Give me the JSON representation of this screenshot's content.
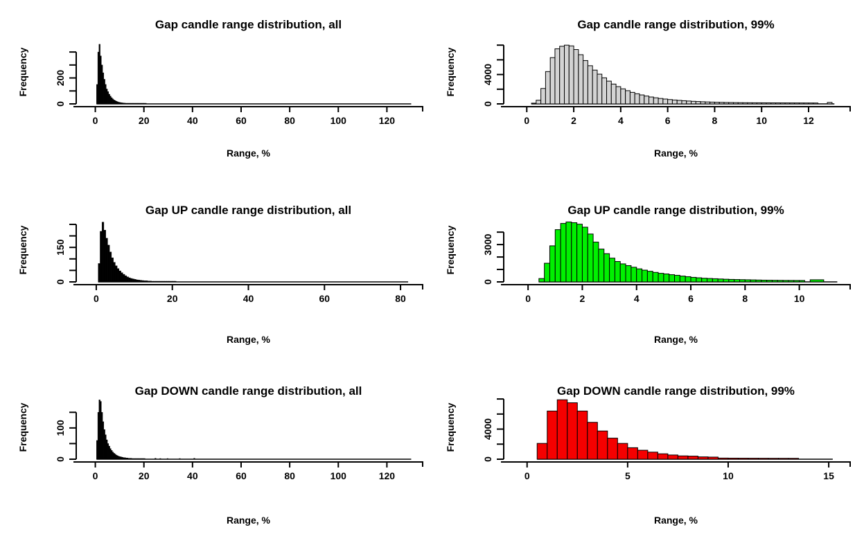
{
  "figure": {
    "background": "#ffffff",
    "grid": "off",
    "legend": "none"
  },
  "chart_data": [
    {
      "type": "histogram",
      "title": "Gap candle range distribution, all",
      "xlabel": "Range, %",
      "ylabel": "Frequency",
      "bar_color": "#000000",
      "bar_border": "#000000",
      "x_ticks": [
        0,
        20,
        40,
        60,
        80,
        100,
        120
      ],
      "xlim": [
        -9,
        135
      ],
      "y_ticks": [
        0,
        100,
        200,
        300,
        400
      ],
      "y_tick_labels": [
        "0",
        "",
        "200",
        "",
        ""
      ],
      "ylim": [
        0,
        470
      ],
      "bins": {
        "start": 0.5,
        "width": 0.5,
        "counts": [
          150,
          400,
          460,
          370,
          300,
          240,
          190,
          150,
          115,
          95,
          75,
          60,
          48,
          38,
          30,
          25,
          20,
          16,
          13,
          11,
          9,
          8,
          7,
          6,
          5,
          5,
          4,
          4,
          3,
          3,
          3,
          2,
          2,
          2,
          2,
          2,
          1,
          1,
          2,
          1
        ]
      },
      "extra_bars": [
        {
          "x": 20.6,
          "width": 0.4,
          "count": 5
        }
      ],
      "zero_line_end": 130
    },
    {
      "type": "histogram",
      "title": "Gap candle range distribution, 99%",
      "xlabel": "Range, %",
      "ylabel": "Frequency",
      "bar_color": "#d3d3d3",
      "bar_border": "#000000",
      "x_ticks": [
        0,
        2,
        4,
        6,
        8,
        10,
        12
      ],
      "xlim": [
        -1.1,
        13.8
      ],
      "y_ticks": [
        0,
        2000,
        4000,
        6000,
        8000
      ],
      "y_tick_labels": [
        "0",
        "",
        "4000",
        "",
        ""
      ],
      "ylim": [
        0,
        8300
      ],
      "bins": {
        "start": 0.2,
        "width": 0.2,
        "counts": [
          100,
          500,
          2100,
          4400,
          6300,
          7500,
          7850,
          8000,
          7900,
          7400,
          6700,
          5900,
          5200,
          4600,
          4050,
          3550,
          3100,
          2700,
          2350,
          2050,
          1800,
          1570,
          1380,
          1220,
          1070,
          940,
          830,
          740,
          660,
          590,
          530,
          480,
          430,
          390,
          350,
          320,
          290,
          265,
          245,
          225,
          210,
          195,
          185,
          175,
          165,
          160,
          155,
          150,
          148,
          145,
          143,
          140,
          138,
          136,
          134,
          132,
          130,
          128,
          126,
          124,
          122
        ]
      },
      "extra_bars": [
        {
          "x": 12.8,
          "width": 0.2,
          "count": 200
        }
      ],
      "zero_line_end": 13.1
    },
    {
      "type": "histogram",
      "title": "Gap UP candle range distribution, all",
      "xlabel": "Range, %",
      "ylabel": "Frequency",
      "bar_color": "#000000",
      "bar_border": "#000000",
      "x_ticks": [
        0,
        20,
        40,
        60,
        80
      ],
      "xlim": [
        -6,
        86
      ],
      "y_ticks": [
        0,
        50,
        100,
        150,
        200,
        250
      ],
      "y_tick_labels": [
        "0",
        "",
        "",
        "150",
        "",
        ""
      ],
      "ylim": [
        0,
        265
      ],
      "bins": {
        "start": 0.5,
        "width": 0.5,
        "counts": [
          80,
          220,
          260,
          225,
          190,
          160,
          130,
          105,
          85,
          70,
          58,
          48,
          40,
          33,
          27,
          22,
          18,
          15,
          13,
          11,
          9,
          8,
          7,
          6,
          5,
          5,
          4,
          4,
          3,
          3,
          3,
          3,
          2,
          2,
          2,
          2,
          2,
          2,
          1,
          2,
          1
        ]
      },
      "extra_bars": [],
      "zero_line_end": 82
    },
    {
      "type": "histogram",
      "title": "Gap UP candle range distribution, 99%",
      "xlabel": "Range, %",
      "ylabel": "Frequency",
      "bar_color": "#00f000",
      "bar_border": "#000000",
      "x_ticks": [
        0,
        2,
        4,
        6,
        8,
        10
      ],
      "xlim": [
        -1,
        11.9
      ],
      "y_ticks": [
        0,
        1000,
        2000,
        3000,
        4000
      ],
      "y_tick_labels": [
        "0",
        "",
        "",
        "3000",
        ""
      ],
      "ylim": [
        0,
        4900
      ],
      "bins": {
        "start": 0.4,
        "width": 0.2,
        "counts": [
          270,
          1500,
          2900,
          4200,
          4700,
          4820,
          4760,
          4640,
          4400,
          3850,
          3200,
          2640,
          2270,
          1910,
          1640,
          1450,
          1310,
          1180,
          1050,
          945,
          855,
          765,
          690,
          640,
          580,
          530,
          470,
          420,
          365,
          330,
          295,
          275,
          255,
          235,
          215,
          200,
          190,
          180,
          170,
          160,
          150,
          140,
          135,
          130,
          125,
          120,
          118,
          116,
          114
        ]
      },
      "extra_bars": [
        {
          "x": 10.4,
          "width": 0.5,
          "count": 170
        }
      ],
      "zero_line_end": 11.4
    },
    {
      "type": "histogram",
      "title": "Gap DOWN candle range distribution, all",
      "xlabel": "Range, %",
      "ylabel": "Frequency",
      "bar_color": "#000000",
      "bar_border": "#000000",
      "x_ticks": [
        0,
        20,
        40,
        60,
        80,
        100,
        120
      ],
      "xlim": [
        -9,
        135
      ],
      "y_ticks": [
        0,
        50,
        100,
        150
      ],
      "y_tick_labels": [
        "0",
        "",
        "100",
        ""
      ],
      "ylim": [
        0,
        195
      ],
      "bins": {
        "start": 0.5,
        "width": 0.5,
        "counts": [
          60,
          150,
          190,
          185,
          150,
          120,
          95,
          78,
          62,
          50,
          42,
          34,
          28,
          23,
          19,
          16,
          13,
          11,
          9,
          8,
          7,
          6,
          5,
          5,
          4,
          4,
          3,
          3,
          3,
          2,
          2,
          2,
          2,
          2,
          2,
          1,
          1,
          2,
          1,
          1
        ]
      },
      "extra_bars": [
        {
          "x": 24.5,
          "width": 0.5,
          "count": 3
        },
        {
          "x": 26.5,
          "width": 0.5,
          "count": 2
        },
        {
          "x": 29.5,
          "width": 0.5,
          "count": 2
        },
        {
          "x": 34.5,
          "width": 0.5,
          "count": 2
        },
        {
          "x": 40.5,
          "width": 0.5,
          "count": 3
        }
      ],
      "zero_line_end": 130
    },
    {
      "type": "histogram",
      "title": "Gap DOWN candle range distribution, 99%",
      "xlabel": "Range, %",
      "ylabel": "Frequency",
      "bar_color": "#f50000",
      "bar_border": "#000000",
      "x_ticks": [
        0,
        5,
        10,
        15
      ],
      "xlim": [
        -1.3,
        16.1
      ],
      "y_ticks": [
        0,
        2000,
        4000,
        6000,
        8000
      ],
      "y_tick_labels": [
        "0",
        "",
        "4000",
        "",
        ""
      ],
      "ylim": [
        0,
        8100
      ],
      "bins": {
        "start": 0.5,
        "width": 0.5,
        "counts": [
          2100,
          6400,
          7900,
          7500,
          6400,
          4900,
          3750,
          2800,
          2100,
          1530,
          1190,
          940,
          720,
          560,
          440,
          410,
          310,
          280,
          150,
          140,
          135,
          130,
          125,
          120,
          118,
          116
        ]
      },
      "extra_bars": [],
      "zero_line_end": 15.2
    }
  ]
}
